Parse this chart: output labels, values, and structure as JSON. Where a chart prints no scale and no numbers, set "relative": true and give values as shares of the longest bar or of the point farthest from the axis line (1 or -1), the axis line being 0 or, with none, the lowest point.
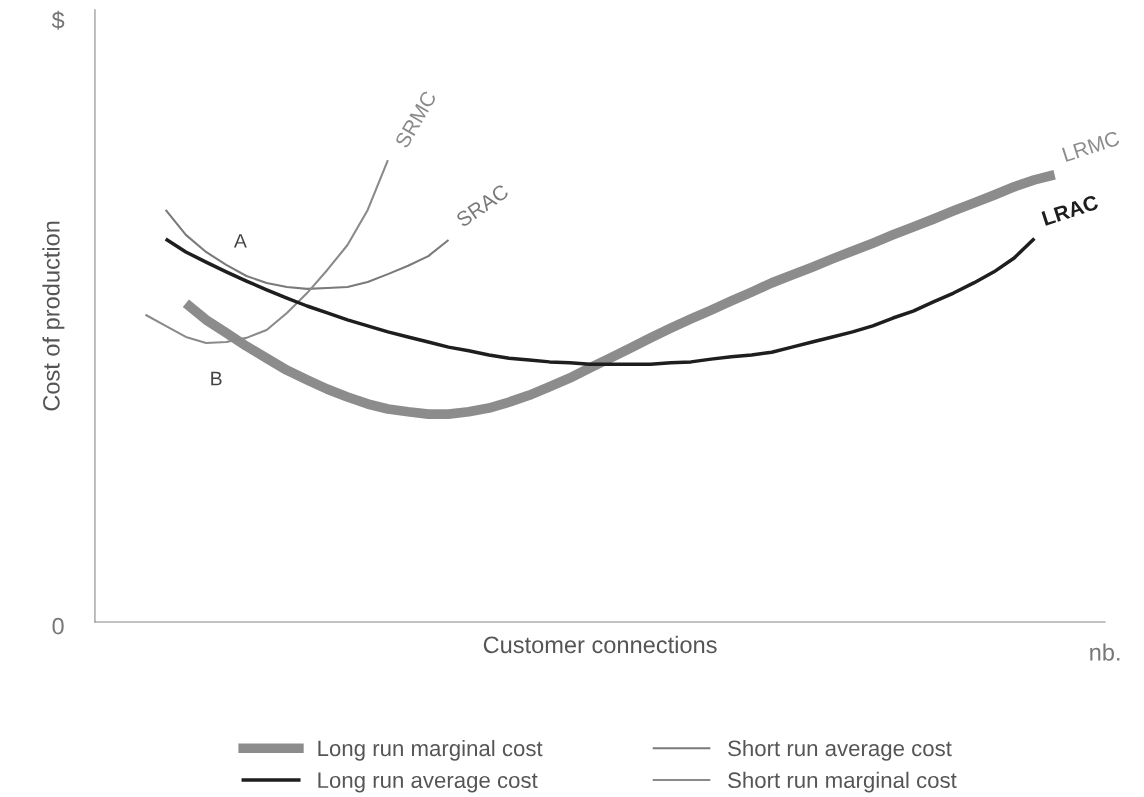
{
  "chart_data": {
    "type": "line",
    "relative": true,
    "xlabel": "Customer connections",
    "ylabel": "Cost of production",
    "categories": [
      null,
      null,
      null,
      null,
      null,
      null,
      null,
      null,
      null,
      null,
      null,
      null,
      null,
      null,
      null,
      null,
      null,
      null,
      null,
      null,
      null,
      null,
      null,
      null,
      null,
      null,
      null,
      null,
      null,
      null,
      null,
      null,
      null,
      null,
      null,
      null,
      null,
      null,
      null,
      null,
      null,
      null,
      null,
      null,
      null,
      null,
      null,
      null,
      null,
      null
    ],
    "series": [
      {
        "name": "Long run marginal cost",
        "color": "#8c8c8c",
        "values": [
          null,
          null,
          null,
          null,
          0.69,
          0.654,
          0.626,
          0.597,
          0.571,
          0.545,
          0.524,
          0.504,
          0.487,
          0.472,
          0.461,
          0.455,
          0.45,
          0.45,
          0.455,
          0.463,
          0.476,
          0.491,
          0.509,
          0.528,
          0.55,
          0.571,
          0.593,
          0.615,
          0.636,
          0.656,
          0.675,
          0.695,
          0.714,
          0.734,
          0.751,
          0.768,
          0.786,
          0.803,
          0.82,
          0.838,
          0.855,
          0.872,
          0.89,
          0.907,
          0.924,
          0.942,
          0.957,
          0.968,
          null,
          null
        ]
      },
      {
        "name": "Long run average cost",
        "color": "#1e1e1e",
        "values": [
          null,
          null,
          null,
          0.829,
          0.801,
          0.779,
          0.758,
          0.738,
          0.719,
          0.701,
          0.684,
          0.669,
          0.654,
          0.641,
          0.628,
          0.617,
          0.606,
          0.595,
          0.587,
          0.578,
          0.571,
          0.567,
          0.563,
          0.561,
          0.558,
          0.558,
          0.558,
          0.558,
          0.561,
          0.563,
          0.569,
          0.574,
          0.578,
          0.584,
          0.595,
          0.606,
          0.617,
          0.628,
          0.641,
          0.658,
          0.673,
          0.693,
          0.712,
          0.734,
          0.758,
          0.788,
          0.83,
          null,
          null,
          null
        ]
      },
      {
        "name": "Short run average cost",
        "color": "#7a7a7a",
        "values": [
          null,
          null,
          null,
          0.892,
          0.838,
          0.801,
          0.773,
          0.749,
          0.734,
          0.725,
          0.721,
          0.723,
          0.725,
          0.736,
          0.753,
          0.771,
          0.792,
          0.827,
          null,
          null,
          null,
          null,
          null,
          null,
          null,
          null,
          null,
          null,
          null,
          null,
          null,
          null,
          null,
          null,
          null,
          null,
          null,
          null,
          null,
          null,
          null,
          null,
          null,
          null,
          null,
          null,
          null,
          null,
          null,
          null
        ]
      },
      {
        "name": "Short run marginal cost",
        "color": "#8a8a8a",
        "values": [
          null,
          null,
          0.665,
          0.641,
          0.617,
          0.604,
          0.606,
          0.615,
          0.632,
          0.669,
          0.712,
          0.762,
          0.816,
          0.892,
          1.0,
          null,
          null,
          null,
          null,
          null,
          null,
          null,
          null,
          null,
          null,
          null,
          null,
          null,
          null,
          null,
          null,
          null,
          null,
          null,
          null,
          null,
          null,
          null,
          null,
          null,
          null,
          null,
          null,
          null,
          null,
          null,
          null,
          null,
          null,
          null
        ]
      }
    ],
    "annotations": [
      "LRMC",
      "LRAC",
      "SRAC",
      "SRMC",
      "A",
      "B",
      "$",
      "0",
      "nb."
    ],
    "legend": "bottom",
    "marker": "none",
    "line_style": "solid"
  }
}
